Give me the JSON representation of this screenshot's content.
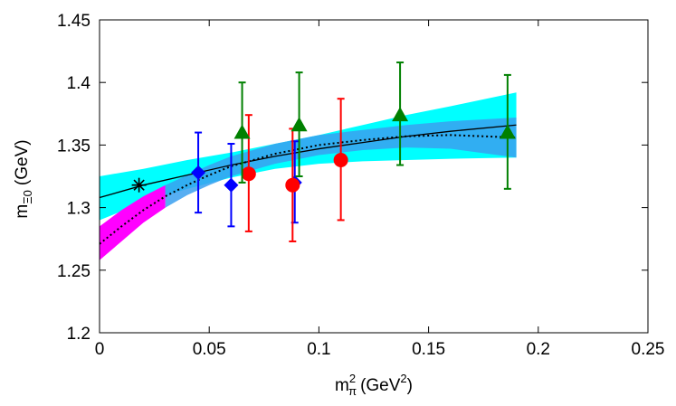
{
  "chart_data": {
    "type": "scatter",
    "title": "",
    "xlabel": {
      "base": "m",
      "sup": "2",
      "sub": "π",
      "unit": "(GeV",
      "unit_sup": "2",
      "unit_close": ")"
    },
    "ylabel": {
      "base": "m",
      "sub": "Ξ0",
      "unit": "(GeV)"
    },
    "xlim": [
      0,
      0.25
    ],
    "ylim": [
      1.2,
      1.45
    ],
    "x_ticks": [
      0,
      0.05,
      0.1,
      0.15,
      0.2,
      0.25
    ],
    "x_tick_labels": [
      "0",
      "0.05",
      "0.1",
      "0.15",
      "0.2",
      "0.25"
    ],
    "y_ticks": [
      1.2,
      1.25,
      1.3,
      1.35,
      1.4,
      1.45
    ],
    "y_tick_labels": [
      "1.2",
      "1.25",
      "1.3",
      "1.35",
      "1.4",
      "1.45"
    ],
    "grid": false,
    "series": [
      {
        "marker": "diamond",
        "color": "#0000ff",
        "points": [
          {
            "x": 0.045,
            "y": 1.328,
            "lo": 1.296,
            "hi": 1.36
          },
          {
            "x": 0.06,
            "y": 1.318,
            "lo": 1.285,
            "hi": 1.351
          },
          {
            "x": 0.089,
            "y": 1.32,
            "lo": 1.288,
            "hi": 1.353
          }
        ]
      },
      {
        "marker": "circle",
        "color": "#ff0000",
        "points": [
          {
            "x": 0.068,
            "y": 1.327,
            "lo": 1.281,
            "hi": 1.374
          },
          {
            "x": 0.088,
            "y": 1.318,
            "lo": 1.273,
            "hi": 1.363
          },
          {
            "x": 0.11,
            "y": 1.338,
            "lo": 1.29,
            "hi": 1.387
          }
        ]
      },
      {
        "marker": "triangle",
        "color": "#008000",
        "points": [
          {
            "x": 0.065,
            "y": 1.36,
            "lo": 1.32,
            "hi": 1.4
          },
          {
            "x": 0.091,
            "y": 1.366,
            "lo": 1.325,
            "hi": 1.408
          },
          {
            "x": 0.137,
            "y": 1.374,
            "lo": 1.334,
            "hi": 1.416
          },
          {
            "x": 0.186,
            "y": 1.36,
            "lo": 1.315,
            "hi": 1.406
          }
        ]
      },
      {
        "marker": "asterisk",
        "color": "#000000",
        "points": [
          {
            "x": 0.018,
            "y": 1.318
          }
        ]
      }
    ],
    "fits": [
      {
        "style": "solid",
        "color": "#000000",
        "band_color": "#00ffff",
        "x": [
          0,
          0.02,
          0.04,
          0.06,
          0.08,
          0.1,
          0.12,
          0.14,
          0.16,
          0.19
        ],
        "y": [
          1.308,
          1.318,
          1.326,
          1.334,
          1.341,
          1.347,
          1.352,
          1.357,
          1.361,
          1.366
        ],
        "lo": [
          1.29,
          1.304,
          1.315,
          1.324,
          1.331,
          1.335,
          1.337,
          1.338,
          1.339,
          1.34
        ],
        "hi": [
          1.325,
          1.331,
          1.338,
          1.344,
          1.351,
          1.358,
          1.366,
          1.374,
          1.381,
          1.392
        ]
      },
      {
        "style": "dotted",
        "color": "#000000",
        "band_color_low": "#ff00ff",
        "band_color_high": "#3aa0f0",
        "band_split_x": 0.03,
        "x": [
          0,
          0.01,
          0.02,
          0.03,
          0.04,
          0.05,
          0.06,
          0.08,
          0.1,
          0.12,
          0.14,
          0.16,
          0.19
        ],
        "y": [
          1.271,
          1.285,
          1.298,
          1.309,
          1.318,
          1.326,
          1.333,
          1.343,
          1.35,
          1.354,
          1.357,
          1.358,
          1.356
        ],
        "lo": [
          1.258,
          1.273,
          1.288,
          1.3,
          1.31,
          1.318,
          1.325,
          1.335,
          1.342,
          1.346,
          1.348,
          1.347,
          1.34
        ],
        "hi": [
          1.285,
          1.298,
          1.309,
          1.318,
          1.326,
          1.334,
          1.341,
          1.351,
          1.358,
          1.362,
          1.366,
          1.369,
          1.372
        ]
      }
    ]
  }
}
